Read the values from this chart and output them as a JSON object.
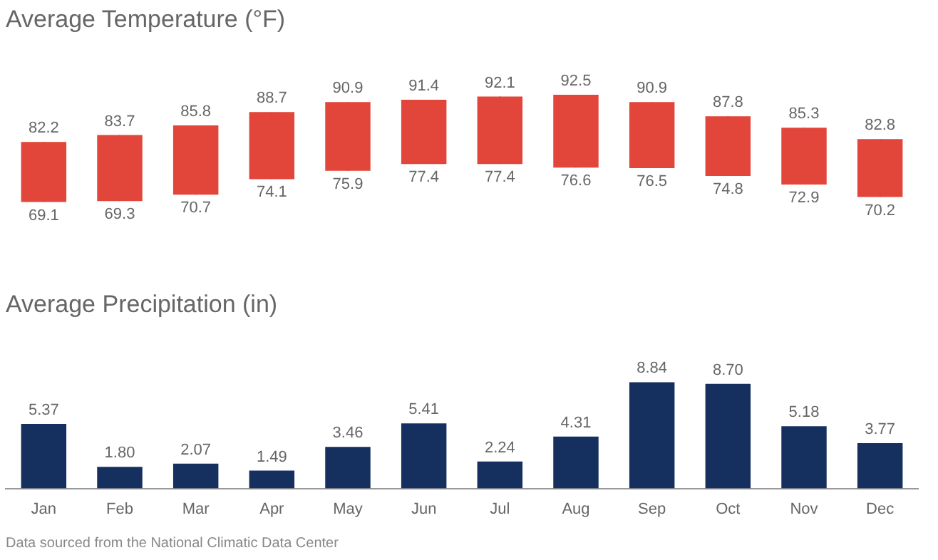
{
  "chart_data": [
    {
      "type": "candlestick",
      "title": "Average Temperature (°F)",
      "categories": [
        null,
        null,
        null,
        null,
        null,
        null,
        null,
        null,
        null,
        null,
        null,
        null
      ],
      "ohlc": [
        [
          69.1,
          82.2,
          69.1,
          82.2
        ],
        [
          69.3,
          83.7,
          69.3,
          83.7
        ],
        [
          70.7,
          85.8,
          70.7,
          85.8
        ],
        [
          74.1,
          88.7,
          74.1,
          88.7
        ],
        [
          75.9,
          90.9,
          75.9,
          90.9
        ],
        [
          77.4,
          91.4,
          77.4,
          91.4
        ],
        [
          77.4,
          92.1,
          77.4,
          92.1
        ],
        [
          76.6,
          92.5,
          76.6,
          92.5
        ],
        [
          76.5,
          90.9,
          76.5,
          90.9
        ],
        [
          74.8,
          87.8,
          74.8,
          87.8
        ],
        [
          72.9,
          85.3,
          72.9,
          85.3
        ],
        [
          70.2,
          82.8,
          70.2,
          82.8
        ]
      ],
      "color": "#e2463a",
      "annotations": [
        {
          "text": "82.2",
          "y": 82.2
        },
        {
          "text": "83.7",
          "y": 83.7
        },
        {
          "text": "85.8",
          "y": 85.8
        },
        {
          "text": "88.7",
          "y": 88.7
        },
        {
          "text": "90.9",
          "y": 90.9
        },
        {
          "text": "91.4",
          "y": 91.4
        },
        {
          "text": "92.1",
          "y": 92.1
        },
        {
          "text": "92.5",
          "y": 92.5
        },
        {
          "text": "90.9",
          "y": 90.9
        },
        {
          "text": "87.8",
          "y": 87.8
        },
        {
          "text": "85.3",
          "y": 85.3
        },
        {
          "text": "82.8",
          "y": 82.8
        },
        {
          "text": "69.1",
          "y": 69.1
        },
        {
          "text": "69.3",
          "y": 69.3
        },
        {
          "text": "70.7",
          "y": 70.7
        },
        {
          "text": "74.1",
          "y": 74.1
        },
        {
          "text": "75.9",
          "y": 75.9
        },
        {
          "text": "77.4",
          "y": 77.4
        },
        {
          "text": "77.4",
          "y": 77.4
        },
        {
          "text": "76.6",
          "y": 76.6
        },
        {
          "text": "76.5",
          "y": 76.5
        },
        {
          "text": "74.8",
          "y": 74.8
        },
        {
          "text": "72.9",
          "y": 72.9
        },
        {
          "text": "70.2",
          "y": 70.2
        }
      ],
      "tick_labels": false
    },
    {
      "type": "bar",
      "title": "Average Precipitation (in)",
      "categories": [
        "Jan",
        "Feb",
        "Mar",
        "Apr",
        "May",
        "Jun",
        "Jul",
        "Aug",
        "Sep",
        "Oct",
        "Nov",
        "Dec"
      ],
      "values": [
        5.37,
        1.8,
        2.07,
        1.49,
        3.46,
        5.41,
        2.24,
        4.31,
        8.84,
        8.7,
        5.18,
        3.77
      ],
      "value_labels": [
        "5.37",
        "1.80",
        "2.07",
        "1.49",
        "3.46",
        "5.41",
        "2.24",
        "4.31",
        "8.84",
        "8.70",
        "5.18",
        "3.77"
      ],
      "color": "#15305f",
      "tick_labels": "x",
      "annotations": [
        "Data sourced from the National Climatic Data Center"
      ]
    }
  ]
}
